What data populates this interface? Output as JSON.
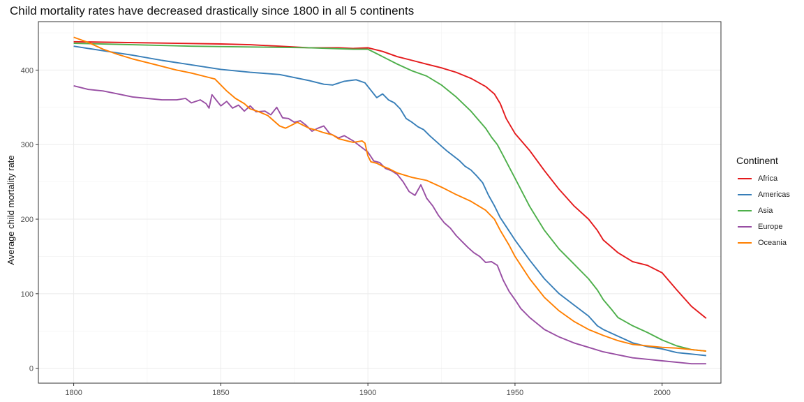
{
  "chart_data": {
    "type": "line",
    "title": "Child mortality rates have decreased drastically since 1800 in all 5 continents",
    "xlabel": "",
    "ylabel": "Average child mortality rate",
    "xlim": [
      1788,
      2020
    ],
    "ylim": [
      -20,
      465
    ],
    "x_ticks": [
      1800,
      1850,
      1900,
      1950,
      2000
    ],
    "y_ticks": [
      0,
      100,
      200,
      300,
      400
    ],
    "grid": true,
    "legend": {
      "title": "Continent",
      "position": "right"
    },
    "series": [
      {
        "name": "Africa",
        "color": "#e41a1c",
        "points": [
          [
            1800,
            438
          ],
          [
            1850,
            435
          ],
          [
            1860,
            434
          ],
          [
            1870,
            432
          ],
          [
            1880,
            430
          ],
          [
            1890,
            430
          ],
          [
            1895,
            429
          ],
          [
            1900,
            430
          ],
          [
            1905,
            425
          ],
          [
            1910,
            418
          ],
          [
            1915,
            413
          ],
          [
            1920,
            408
          ],
          [
            1925,
            403
          ],
          [
            1930,
            397
          ],
          [
            1935,
            389
          ],
          [
            1940,
            378
          ],
          [
            1943,
            368
          ],
          [
            1945,
            355
          ],
          [
            1947,
            335
          ],
          [
            1950,
            315
          ],
          [
            1955,
            292
          ],
          [
            1960,
            265
          ],
          [
            1965,
            240
          ],
          [
            1970,
            218
          ],
          [
            1975,
            200
          ],
          [
            1978,
            185
          ],
          [
            1980,
            172
          ],
          [
            1985,
            155
          ],
          [
            1990,
            143
          ],
          [
            1995,
            138
          ],
          [
            2000,
            128
          ],
          [
            2005,
            105
          ],
          [
            2010,
            83
          ],
          [
            2015,
            67
          ]
        ]
      },
      {
        "name": "Americas",
        "color": "#377eb8",
        "points": [
          [
            1800,
            432
          ],
          [
            1810,
            426
          ],
          [
            1820,
            420
          ],
          [
            1830,
            413
          ],
          [
            1840,
            407
          ],
          [
            1850,
            401
          ],
          [
            1860,
            397
          ],
          [
            1870,
            394
          ],
          [
            1880,
            386
          ],
          [
            1885,
            381
          ],
          [
            1888,
            380
          ],
          [
            1892,
            385
          ],
          [
            1896,
            387
          ],
          [
            1899,
            383
          ],
          [
            1901,
            373
          ],
          [
            1903,
            363
          ],
          [
            1905,
            368
          ],
          [
            1907,
            360
          ],
          [
            1909,
            356
          ],
          [
            1911,
            348
          ],
          [
            1913,
            335
          ],
          [
            1915,
            330
          ],
          [
            1917,
            324
          ],
          [
            1919,
            320
          ],
          [
            1921,
            312
          ],
          [
            1923,
            305
          ],
          [
            1925,
            298
          ],
          [
            1927,
            291
          ],
          [
            1929,
            285
          ],
          [
            1931,
            279
          ],
          [
            1933,
            271
          ],
          [
            1935,
            266
          ],
          [
            1937,
            258
          ],
          [
            1939,
            249
          ],
          [
            1941,
            232
          ],
          [
            1943,
            218
          ],
          [
            1945,
            202
          ],
          [
            1947,
            190
          ],
          [
            1950,
            172
          ],
          [
            1955,
            145
          ],
          [
            1960,
            120
          ],
          [
            1965,
            100
          ],
          [
            1970,
            85
          ],
          [
            1975,
            70
          ],
          [
            1978,
            57
          ],
          [
            1980,
            52
          ],
          [
            1985,
            43
          ],
          [
            1990,
            34
          ],
          [
            1995,
            29
          ],
          [
            2000,
            26
          ],
          [
            2005,
            21
          ],
          [
            2010,
            19
          ],
          [
            2015,
            17
          ]
        ]
      },
      {
        "name": "Asia",
        "color": "#4daf4a",
        "points": [
          [
            1800,
            436
          ],
          [
            1820,
            434
          ],
          [
            1840,
            432
          ],
          [
            1860,
            431
          ],
          [
            1880,
            430
          ],
          [
            1895,
            428
          ],
          [
            1900,
            428
          ],
          [
            1903,
            422
          ],
          [
            1906,
            416
          ],
          [
            1910,
            408
          ],
          [
            1915,
            399
          ],
          [
            1920,
            392
          ],
          [
            1925,
            380
          ],
          [
            1930,
            364
          ],
          [
            1935,
            345
          ],
          [
            1940,
            322
          ],
          [
            1942,
            310
          ],
          [
            1944,
            300
          ],
          [
            1946,
            285
          ],
          [
            1948,
            270
          ],
          [
            1950,
            255
          ],
          [
            1955,
            217
          ],
          [
            1960,
            185
          ],
          [
            1965,
            160
          ],
          [
            1970,
            140
          ],
          [
            1975,
            120
          ],
          [
            1978,
            105
          ],
          [
            1980,
            92
          ],
          [
            1983,
            78
          ],
          [
            1985,
            68
          ],
          [
            1990,
            57
          ],
          [
            1995,
            48
          ],
          [
            2000,
            38
          ],
          [
            2005,
            30
          ],
          [
            2010,
            25
          ],
          [
            2015,
            23
          ]
        ]
      },
      {
        "name": "Europe",
        "color": "#984ea3",
        "points": [
          [
            1800,
            379
          ],
          [
            1805,
            374
          ],
          [
            1810,
            372
          ],
          [
            1815,
            368
          ],
          [
            1820,
            364
          ],
          [
            1825,
            362
          ],
          [
            1830,
            360
          ],
          [
            1835,
            360
          ],
          [
            1838,
            362
          ],
          [
            1840,
            356
          ],
          [
            1843,
            360
          ],
          [
            1845,
            355
          ],
          [
            1846,
            349
          ],
          [
            1847,
            367
          ],
          [
            1848,
            362
          ],
          [
            1850,
            352
          ],
          [
            1852,
            358
          ],
          [
            1854,
            349
          ],
          [
            1856,
            353
          ],
          [
            1858,
            345
          ],
          [
            1860,
            352
          ],
          [
            1862,
            344
          ],
          [
            1865,
            345
          ],
          [
            1867,
            340
          ],
          [
            1869,
            350
          ],
          [
            1871,
            336
          ],
          [
            1873,
            335
          ],
          [
            1875,
            330
          ],
          [
            1877,
            332
          ],
          [
            1879,
            326
          ],
          [
            1881,
            318
          ],
          [
            1883,
            322
          ],
          [
            1885,
            325
          ],
          [
            1887,
            315
          ],
          [
            1890,
            309
          ],
          [
            1892,
            312
          ],
          [
            1895,
            305
          ],
          [
            1898,
            296
          ],
          [
            1900,
            290
          ],
          [
            1902,
            278
          ],
          [
            1904,
            276
          ],
          [
            1906,
            268
          ],
          [
            1908,
            265
          ],
          [
            1910,
            260
          ],
          [
            1912,
            250
          ],
          [
            1914,
            237
          ],
          [
            1916,
            232
          ],
          [
            1918,
            246
          ],
          [
            1920,
            228
          ],
          [
            1922,
            218
          ],
          [
            1924,
            205
          ],
          [
            1926,
            195
          ],
          [
            1928,
            188
          ],
          [
            1930,
            178
          ],
          [
            1932,
            170
          ],
          [
            1934,
            162
          ],
          [
            1936,
            155
          ],
          [
            1938,
            150
          ],
          [
            1940,
            142
          ],
          [
            1942,
            143
          ],
          [
            1944,
            138
          ],
          [
            1946,
            118
          ],
          [
            1948,
            103
          ],
          [
            1950,
            92
          ],
          [
            1952,
            80
          ],
          [
            1955,
            68
          ],
          [
            1960,
            52
          ],
          [
            1965,
            42
          ],
          [
            1970,
            34
          ],
          [
            1975,
            28
          ],
          [
            1980,
            22
          ],
          [
            1985,
            18
          ],
          [
            1990,
            14
          ],
          [
            1995,
            12
          ],
          [
            2000,
            10
          ],
          [
            2005,
            8
          ],
          [
            2010,
            6
          ],
          [
            2015,
            6
          ]
        ]
      },
      {
        "name": "Oceania",
        "color": "#ff7f00",
        "points": [
          [
            1800,
            444
          ],
          [
            1805,
            437
          ],
          [
            1810,
            428
          ],
          [
            1815,
            421
          ],
          [
            1820,
            415
          ],
          [
            1825,
            410
          ],
          [
            1830,
            405
          ],
          [
            1835,
            400
          ],
          [
            1840,
            396
          ],
          [
            1845,
            391
          ],
          [
            1848,
            388
          ],
          [
            1850,
            380
          ],
          [
            1852,
            372
          ],
          [
            1855,
            362
          ],
          [
            1858,
            355
          ],
          [
            1860,
            348
          ],
          [
            1863,
            344
          ],
          [
            1866,
            339
          ],
          [
            1868,
            332
          ],
          [
            1870,
            325
          ],
          [
            1872,
            322
          ],
          [
            1874,
            326
          ],
          [
            1876,
            330
          ],
          [
            1878,
            326
          ],
          [
            1880,
            322
          ],
          [
            1882,
            320
          ],
          [
            1885,
            316
          ],
          [
            1888,
            313
          ],
          [
            1890,
            308
          ],
          [
            1893,
            305
          ],
          [
            1895,
            303
          ],
          [
            1898,
            305
          ],
          [
            1899,
            302
          ],
          [
            1900,
            285
          ],
          [
            1901,
            277
          ],
          [
            1903,
            275
          ],
          [
            1905,
            271
          ],
          [
            1907,
            268
          ],
          [
            1910,
            262
          ],
          [
            1915,
            256
          ],
          [
            1920,
            252
          ],
          [
            1925,
            243
          ],
          [
            1930,
            233
          ],
          [
            1935,
            224
          ],
          [
            1940,
            212
          ],
          [
            1943,
            200
          ],
          [
            1945,
            185
          ],
          [
            1948,
            165
          ],
          [
            1950,
            150
          ],
          [
            1955,
            120
          ],
          [
            1960,
            95
          ],
          [
            1965,
            77
          ],
          [
            1970,
            63
          ],
          [
            1975,
            52
          ],
          [
            1980,
            44
          ],
          [
            1985,
            37
          ],
          [
            1990,
            32
          ],
          [
            1995,
            30
          ],
          [
            2000,
            28
          ],
          [
            2005,
            27
          ],
          [
            2010,
            25
          ],
          [
            2015,
            23
          ]
        ]
      }
    ]
  }
}
